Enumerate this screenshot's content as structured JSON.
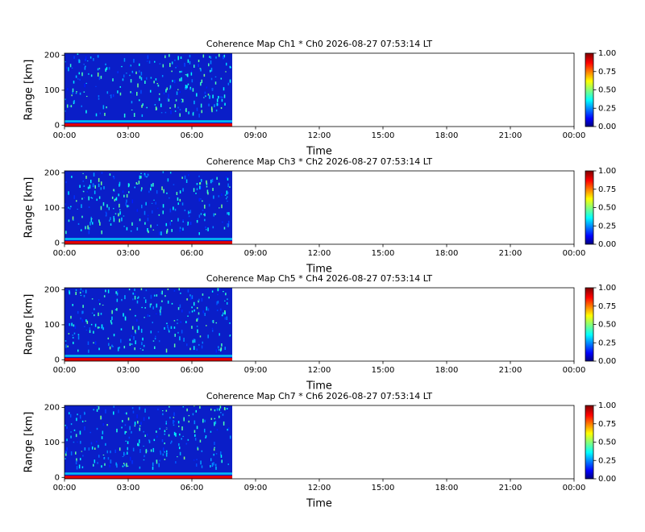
{
  "chart_data": [
    {
      "type": "heatmap",
      "title": "Coherence Map Ch1 * Ch0 2026-08-27 07:53:14 LT",
      "x_label": "Time",
      "y_label": "Range [km]",
      "xlim": [
        0,
        24
      ],
      "xticks": [
        {
          "value": 0,
          "label": "00:00"
        },
        {
          "value": 3,
          "label": "03:00"
        },
        {
          "value": 6,
          "label": "06:00"
        },
        {
          "value": 9,
          "label": "09:00"
        },
        {
          "value": 12,
          "label": "12:00"
        },
        {
          "value": 15,
          "label": "15:00"
        },
        {
          "value": 18,
          "label": "18:00"
        },
        {
          "value": 21,
          "label": "21:00"
        },
        {
          "value": 24,
          "label": "00:00"
        }
      ],
      "ylim": [
        -4,
        206
      ],
      "yticks": [
        0,
        100,
        200
      ],
      "data_x": [
        0,
        7.9
      ],
      "colormap": "jet",
      "clim": [
        0,
        1
      ],
      "cticks": [
        {
          "value": 0,
          "label": "0.00"
        },
        {
          "value": 0.25,
          "label": "0.25"
        },
        {
          "value": 0.5,
          "label": "0.50"
        },
        {
          "value": 0.75,
          "label": "0.75"
        },
        {
          "value": 1,
          "label": "1.00"
        }
      ]
    },
    {
      "type": "heatmap",
      "title": "Coherence Map Ch3 * Ch2 2026-08-27 07:53:14 LT",
      "x_label": "Time",
      "y_label": "Range [km]",
      "xlim": [
        0,
        24
      ],
      "xticks": [
        {
          "value": 0,
          "label": "00:00"
        },
        {
          "value": 3,
          "label": "03:00"
        },
        {
          "value": 6,
          "label": "06:00"
        },
        {
          "value": 9,
          "label": "09:00"
        },
        {
          "value": 12,
          "label": "12:00"
        },
        {
          "value": 15,
          "label": "15:00"
        },
        {
          "value": 18,
          "label": "18:00"
        },
        {
          "value": 21,
          "label": "21:00"
        },
        {
          "value": 24,
          "label": "00:00"
        }
      ],
      "ylim": [
        -4,
        206
      ],
      "yticks": [
        0,
        100,
        200
      ],
      "data_x": [
        0,
        7.9
      ],
      "colormap": "jet",
      "clim": [
        0,
        1
      ],
      "cticks": [
        {
          "value": 0,
          "label": "0.00"
        },
        {
          "value": 0.25,
          "label": "0.25"
        },
        {
          "value": 0.5,
          "label": "0.50"
        },
        {
          "value": 0.75,
          "label": "0.75"
        },
        {
          "value": 1,
          "label": "1.00"
        }
      ]
    },
    {
      "type": "heatmap",
      "title": "Coherence Map Ch5 * Ch4 2026-08-27 07:53:14 LT",
      "x_label": "Time",
      "y_label": "Range [km]",
      "xlim": [
        0,
        24
      ],
      "xticks": [
        {
          "value": 0,
          "label": "00:00"
        },
        {
          "value": 3,
          "label": "03:00"
        },
        {
          "value": 6,
          "label": "06:00"
        },
        {
          "value": 9,
          "label": "09:00"
        },
        {
          "value": 12,
          "label": "12:00"
        },
        {
          "value": 15,
          "label": "15:00"
        },
        {
          "value": 18,
          "label": "18:00"
        },
        {
          "value": 21,
          "label": "21:00"
        },
        {
          "value": 24,
          "label": "00:00"
        }
      ],
      "ylim": [
        -4,
        206
      ],
      "yticks": [
        0,
        100,
        200
      ],
      "data_x": [
        0,
        7.9
      ],
      "colormap": "jet",
      "clim": [
        0,
        1
      ],
      "cticks": [
        {
          "value": 0,
          "label": "0.00"
        },
        {
          "value": 0.25,
          "label": "0.25"
        },
        {
          "value": 0.5,
          "label": "0.50"
        },
        {
          "value": 0.75,
          "label": "0.75"
        },
        {
          "value": 1,
          "label": "1.00"
        }
      ]
    },
    {
      "type": "heatmap",
      "title": "Coherence Map Ch7 * Ch6 2026-08-27 07:53:14 LT",
      "x_label": "Time",
      "y_label": "Range [km]",
      "xlim": [
        0,
        24
      ],
      "xticks": [
        {
          "value": 0,
          "label": "00:00"
        },
        {
          "value": 3,
          "label": "03:00"
        },
        {
          "value": 6,
          "label": "06:00"
        },
        {
          "value": 9,
          "label": "09:00"
        },
        {
          "value": 12,
          "label": "12:00"
        },
        {
          "value": 15,
          "label": "15:00"
        },
        {
          "value": 18,
          "label": "18:00"
        },
        {
          "value": 21,
          "label": "21:00"
        },
        {
          "value": 24,
          "label": "00:00"
        }
      ],
      "ylim": [
        -4,
        206
      ],
      "yticks": [
        0,
        100,
        200
      ],
      "data_x": [
        0,
        7.9
      ],
      "colormap": "jet",
      "clim": [
        0,
        1
      ],
      "cticks": [
        {
          "value": 0,
          "label": "0.00"
        },
        {
          "value": 0.25,
          "label": "0.25"
        },
        {
          "value": 0.5,
          "label": "0.50"
        },
        {
          "value": 0.75,
          "label": "0.75"
        },
        {
          "value": 1,
          "label": "1.00"
        }
      ]
    }
  ]
}
